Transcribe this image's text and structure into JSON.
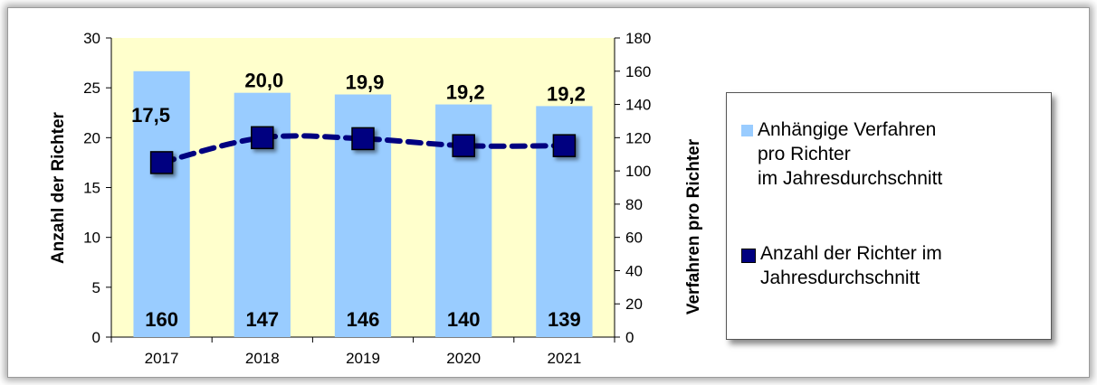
{
  "chart_data": {
    "type": "bar",
    "categories": [
      "2017",
      "2018",
      "2019",
      "2020",
      "2021"
    ],
    "series": [
      {
        "name": "Anhängige Verfahren\npro Richter\nim Jahresdurchschnitt",
        "type": "bar",
        "axis": "right",
        "values": [
          160,
          147,
          146,
          140,
          139
        ],
        "labels": [
          "160",
          "147",
          "146",
          "140",
          "139"
        ],
        "color": "#99ccff"
      },
      {
        "name": "Anzahl der Richter im\nJahresdurchschnitt",
        "type": "line",
        "axis": "left",
        "values": [
          17.5,
          20.0,
          19.9,
          19.2,
          19.2
        ],
        "labels": [
          "17,5",
          "20,0",
          "19,9",
          "19,2",
          "19,2"
        ],
        "color": "#000080",
        "line_style": "dashed",
        "marker": "square"
      }
    ],
    "y_left": {
      "label": "Anzahl der Richter",
      "range": [
        0,
        30
      ],
      "ticks": [
        "0",
        "5",
        "10",
        "15",
        "20",
        "25",
        "30"
      ]
    },
    "y_right": {
      "label": "Verfahren pro Richter",
      "range": [
        0,
        180
      ],
      "ticks": [
        "0",
        "20",
        "40",
        "60",
        "80",
        "100",
        "120",
        "140",
        "160",
        "180"
      ]
    },
    "plot_background": "#ffffcc",
    "legend_position": "right",
    "grid": false
  }
}
